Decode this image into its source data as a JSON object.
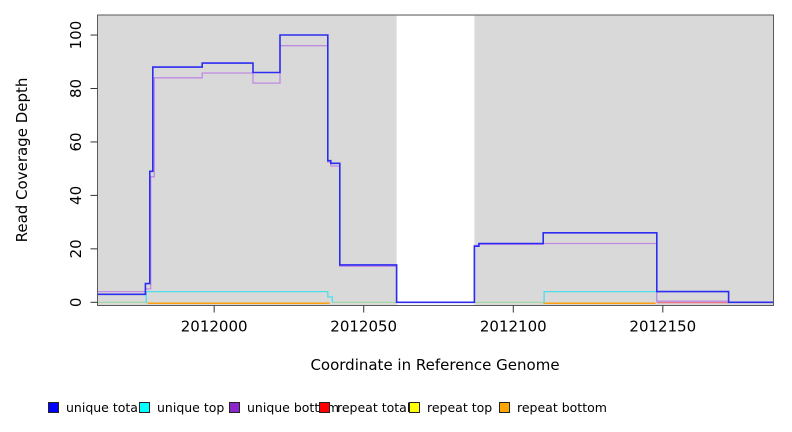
{
  "figure": {
    "x_axis_label": "Coordinate in Reference Genome",
    "y_axis_label": "Read Coverage Depth"
  },
  "chart_data": {
    "type": "line",
    "subtype": "step-coverage",
    "title": "",
    "xlabel": "Coordinate in Reference Genome",
    "ylabel": "Read Coverage Depth",
    "xlim": [
      2011961,
      2012187
    ],
    "ylim": [
      -1.2,
      107.5
    ],
    "x_ticks": [
      2012000,
      2012050,
      2012100,
      2012150
    ],
    "y_ticks": [
      0,
      20,
      40,
      60,
      80,
      100
    ],
    "plot_bg": "#d9d9d9",
    "border_color": "#5a5a5a",
    "grid": false,
    "legend_position": "bottom",
    "gap_region": {
      "x_start": 2012061,
      "x_end": 2012087,
      "fill": "#ffffff",
      "note": "white no-data band spanning full plot height"
    },
    "series": [
      {
        "name": "unique total",
        "line_color": "#2d2df2",
        "line_width": 1.6,
        "x_end": 2012187,
        "steps": [
          [
            2011961,
            3
          ],
          [
            2011977,
            7
          ],
          [
            2011978.5,
            49
          ],
          [
            2011979.5,
            88
          ],
          [
            2011996,
            89.5
          ],
          [
            2012013,
            86
          ],
          [
            2012022,
            100
          ],
          [
            2012038,
            53
          ],
          [
            2012039,
            52
          ],
          [
            2012042,
            14
          ],
          [
            2012061,
            0
          ],
          [
            2012087,
            21
          ],
          [
            2012088.5,
            22
          ],
          [
            2012110,
            26
          ],
          [
            2012148,
            4
          ],
          [
            2012172,
            0
          ]
        ]
      },
      {
        "name": "unique bottom",
        "line_color": "#c18ae3",
        "line_width": 1.3,
        "x_end": 2012187,
        "steps": [
          [
            2011961,
            4
          ],
          [
            2011977,
            5
          ],
          [
            2011978.8,
            47
          ],
          [
            2011980,
            84
          ],
          [
            2011996,
            85.8
          ],
          [
            2012013,
            82
          ],
          [
            2012022,
            96
          ],
          [
            2012038,
            52.5
          ],
          [
            2012039,
            51
          ],
          [
            2012042,
            13.5
          ],
          [
            2012061,
            0
          ],
          [
            2012087,
            21.3
          ],
          [
            2012088.5,
            21.7
          ],
          [
            2012110,
            22
          ],
          [
            2012148,
            0.4
          ],
          [
            2012172,
            0
          ]
        ]
      },
      {
        "name": "unique top (left block)",
        "legend_name": "unique top",
        "line_color": "#4fdfe8",
        "line_width": 1.3,
        "x_end": 2012039.5,
        "steps": [
          [
            2011977,
            0
          ],
          [
            2011977.3,
            4
          ],
          [
            2012038,
            2
          ],
          [
            2012039.5,
            0
          ]
        ]
      },
      {
        "name": "unique top (right block)",
        "legend_name": "unique top",
        "line_color": "#4fdfe8",
        "line_width": 1.3,
        "x_end": 2012148,
        "steps": [
          [
            2012110,
            0
          ],
          [
            2012110.3,
            4
          ],
          [
            2012148,
            0
          ]
        ]
      },
      {
        "name": "repeat total",
        "line_color": "#ee7588",
        "line_width": 1.3,
        "value": 0,
        "segments": [
          [
            2012148,
            2012172
          ]
        ],
        "y_offset": 0.3
      },
      {
        "name": "repeat top",
        "line_color": "#ffff00",
        "line_width": 1.2,
        "value": 0,
        "segments": [],
        "note": "0 throughout; hidden beneath other baseline lines"
      },
      {
        "name": "repeat bottom",
        "line_color": "#ff9f0e",
        "line_width": 1.5,
        "value": 0,
        "segments": [
          [
            2011977.7,
            2012038.6
          ],
          [
            2012110,
            2012147.6
          ]
        ],
        "y_offset": 0.9
      },
      {
        "name": "baseline blend (unique top + repeat top at 0)",
        "legend_name": null,
        "line_color": "#9fd89f",
        "line_width": 1.2,
        "value": 0,
        "segments": [
          [
            2011961,
            2011977.3
          ],
          [
            2012039.5,
            2012061
          ],
          [
            2012087,
            2012110
          ]
        ],
        "y_offset": 0.0
      }
    ]
  },
  "legend": {
    "items": [
      {
        "label": "unique total",
        "color": "#0000ff"
      },
      {
        "label": "unique top",
        "color": "#00ffff"
      },
      {
        "label": "unique bottom",
        "color": "#8b26c9"
      },
      {
        "label": "repeat total",
        "color": "#ff0000"
      },
      {
        "label": "repeat top",
        "color": "#ffff00"
      },
      {
        "label": "repeat bottom",
        "color": "#ffa500"
      }
    ]
  }
}
